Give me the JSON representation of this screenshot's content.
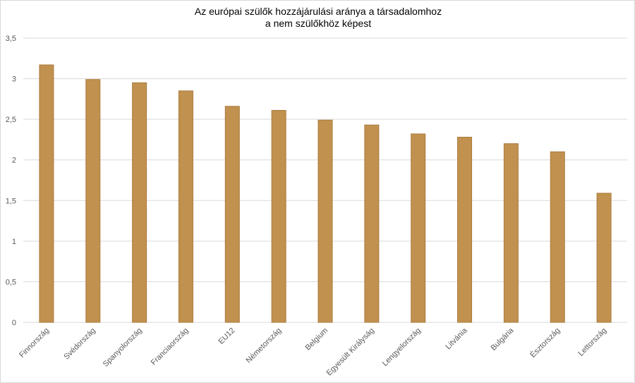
{
  "chart_data": {
    "type": "bar",
    "title": [
      "Az európai szülők hozzájárulási aránya a társadalomhoz",
      "a nem szülőkhöz képest"
    ],
    "xlabel": "",
    "ylabel": "",
    "ylim": [
      0,
      3.5
    ],
    "yticks": [
      "0",
      "0,5",
      "1",
      "1,5",
      "2",
      "2,5",
      "3",
      "3,5"
    ],
    "grid": true,
    "categories": [
      "Finnország",
      "Svédország",
      "Spanyolország",
      "Franciaország",
      "EU12",
      "Németország",
      "Belgium",
      "Egyesült Királyság",
      "Lengyelország",
      "Litvánia",
      "Bulgária",
      "Észtország",
      "Lettország"
    ],
    "values": [
      3.17,
      2.99,
      2.95,
      2.85,
      2.66,
      2.61,
      2.49,
      2.43,
      2.32,
      2.28,
      2.2,
      2.1,
      1.59
    ],
    "colors": {
      "bar": "#c0914f",
      "bar_border": "#ad7a3c",
      "grid": "#d9d9d9"
    }
  }
}
